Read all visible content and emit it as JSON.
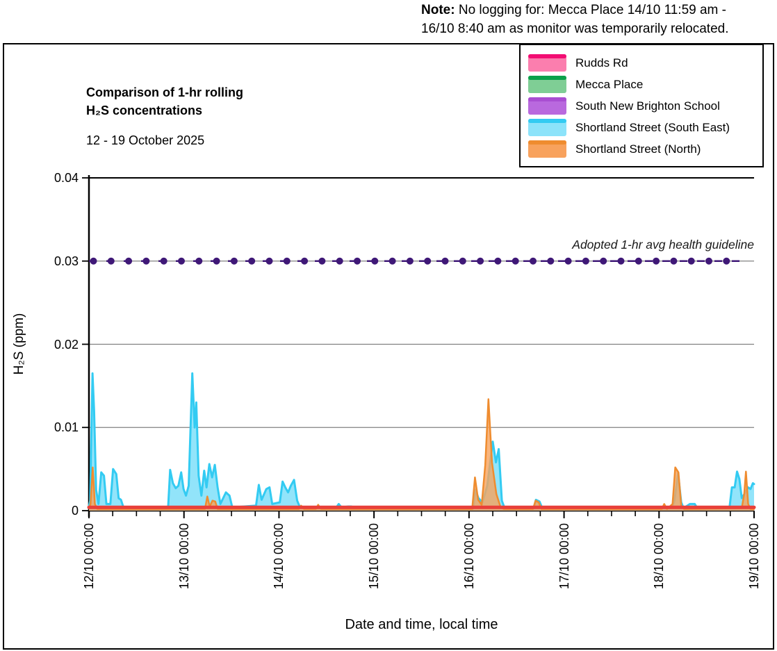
{
  "note": {
    "label": "Note:",
    "line1": " No logging for: Mecca Place 14/10 11:59 am -",
    "line2": "16/10 8:40 am as monitor was temporarily relocated."
  },
  "title": {
    "line1": "Comparison of 1-hr rolling",
    "line2": "H₂S concentrations",
    "date_range": "12 - 19 October 2025"
  },
  "legend": {
    "items": [
      {
        "label": "Rudds Rd",
        "line": "#F20D73",
        "fill": "#FB7EAE"
      },
      {
        "label": "Mecca Place",
        "line": "#0CA14B",
        "fill": "#7FCE95"
      },
      {
        "label": "South New Brighton School",
        "line": "#A94ED2",
        "fill": "#B969DE"
      },
      {
        "label": "Shortland Street (South East)",
        "line": "#33CBF2",
        "fill": "#8CE3FA"
      },
      {
        "label": "Shortland Street (North)",
        "line": "#EF8C2F",
        "fill": "#F8A25D"
      }
    ]
  },
  "axes": {
    "y_label": "H₂S (ppm)",
    "x_label": "Date and time, local time",
    "y_ticks": [
      "0.04",
      "0.03",
      "0.02",
      "0.01",
      "0"
    ],
    "x_ticks": [
      "12/10 00:00",
      "13/10 00:00",
      "14/10 00:00",
      "15/10 00:00",
      "16/10 00:00",
      "17/10 00:00",
      "18/10 00:00",
      "19/10 00:00"
    ]
  },
  "guideline": {
    "label": "Adopted 1-hr avg health guideline",
    "value": 0.03,
    "color": "#3F1877"
  },
  "chart_data": {
    "type": "area",
    "title": "Comparison of 1-hr rolling H₂S concentrations, 12 - 19 October 2025",
    "xlabel": "Date and time, local time",
    "ylabel": "H₂S (ppm)",
    "x_unit": "hours since 12/10 00:00",
    "x_range": [
      0,
      168
    ],
    "ylim": [
      0,
      0.04
    ],
    "grid_values": [
      0.01,
      0.02,
      0.03,
      0.04
    ],
    "guideline_value": 0.03,
    "series": [
      {
        "name": "South New Brighton School",
        "color": "#A94ED2",
        "fill": "none",
        "width": 2.5,
        "opacity": 1,
        "points": [
          [
            0,
            0.00035
          ],
          [
            168,
            0.00035
          ]
        ]
      },
      {
        "name": "Mecca Place",
        "color": "#0CA14B",
        "fill": "none",
        "width": 2.5,
        "opacity": 1,
        "points": [
          [
            0,
            0.0003
          ],
          [
            168,
            0.0003
          ]
        ]
      },
      {
        "name": "Shortland Street (South East)",
        "color": "#33CBF2",
        "fill": "#8CE3FA",
        "width": 3,
        "opacity": 0.95,
        "points": [
          [
            0,
            0.0005
          ],
          [
            0.3,
            0.0012
          ],
          [
            0.9,
            0.0165
          ],
          [
            1.3,
            0.012
          ],
          [
            1.8,
            0.0025
          ],
          [
            2.4,
            0.0008
          ],
          [
            3.1,
            0.0046
          ],
          [
            3.8,
            0.0042
          ],
          [
            4.4,
            0.0008
          ],
          [
            5.4,
            0.0008
          ],
          [
            6.1,
            0.005
          ],
          [
            6.9,
            0.0044
          ],
          [
            7.5,
            0.0015
          ],
          [
            8.1,
            0.0013
          ],
          [
            8.7,
            0.0004
          ],
          [
            20.0,
            0.0004
          ],
          [
            20.5,
            0.0049
          ],
          [
            21.2,
            0.0033
          ],
          [
            21.9,
            0.0027
          ],
          [
            22.6,
            0.003
          ],
          [
            23.3,
            0.0046
          ],
          [
            23.9,
            0.0026
          ],
          [
            24.5,
            0.0018
          ],
          [
            25.2,
            0.003
          ],
          [
            26.1,
            0.0165
          ],
          [
            26.7,
            0.01
          ],
          [
            27.1,
            0.013
          ],
          [
            27.7,
            0.0042
          ],
          [
            28.4,
            0.0018
          ],
          [
            29.1,
            0.0048
          ],
          [
            29.7,
            0.0028
          ],
          [
            30.4,
            0.0056
          ],
          [
            31.1,
            0.004
          ],
          [
            31.8,
            0.0055
          ],
          [
            32.5,
            0.0028
          ],
          [
            33.2,
            0.0008
          ],
          [
            34.6,
            0.0022
          ],
          [
            35.5,
            0.0018
          ],
          [
            36.2,
            0.0004
          ],
          [
            42.2,
            0.0006
          ],
          [
            42.9,
            0.0031
          ],
          [
            43.6,
            0.0013
          ],
          [
            44.8,
            0.0026
          ],
          [
            45.6,
            0.0028
          ],
          [
            46.3,
            0.0008
          ],
          [
            48.2,
            0.001
          ],
          [
            48.9,
            0.0035
          ],
          [
            49.6,
            0.0028
          ],
          [
            50.3,
            0.0022
          ],
          [
            51.0,
            0.003
          ],
          [
            51.8,
            0.0037
          ],
          [
            52.6,
            0.0012
          ],
          [
            53.3,
            0.0004
          ],
          [
            62.5,
            0.0004
          ],
          [
            63.1,
            0.0008
          ],
          [
            63.8,
            0.0004
          ],
          [
            65.5,
            0.0005
          ],
          [
            66.3,
            0.0005
          ],
          [
            66.9,
            0.0002
          ],
          [
            97.0,
            0.0002
          ],
          [
            97.6,
            0.0025
          ],
          [
            98.4,
            0.0015
          ],
          [
            99.4,
            0.001
          ],
          [
            100.6,
            0.003
          ],
          [
            102.0,
            0.0083
          ],
          [
            102.8,
            0.0058
          ],
          [
            103.5,
            0.0074
          ],
          [
            104.3,
            0.0012
          ],
          [
            105.0,
            0.0003
          ],
          [
            112.3,
            0.0003
          ],
          [
            112.9,
            0.0013
          ],
          [
            113.8,
            0.0011
          ],
          [
            114.5,
            0.0003
          ],
          [
            147.2,
            0.0003
          ],
          [
            147.9,
            0.0012
          ],
          [
            148.8,
            0.0045
          ],
          [
            149.6,
            0.001
          ],
          [
            150.2,
            0.0003
          ],
          [
            151.8,
            0.0008
          ],
          [
            153.0,
            0.0008
          ],
          [
            153.7,
            0.0003
          ],
          [
            161.8,
            0.0004
          ],
          [
            162.4,
            0.0028
          ],
          [
            163.1,
            0.0028
          ],
          [
            163.7,
            0.0047
          ],
          [
            164.3,
            0.0038
          ],
          [
            164.9,
            0.0015
          ],
          [
            165.8,
            0.0022
          ],
          [
            166.5,
            0.0028
          ],
          [
            167.1,
            0.0026
          ],
          [
            167.7,
            0.0033
          ],
          [
            168,
            0.0032
          ]
        ]
      },
      {
        "name": "Shortland Street (North)",
        "color": "#EF8C2F",
        "fill": "#F8A25D",
        "width": 2.5,
        "opacity": 0.8,
        "points": [
          [
            0,
            0.0003
          ],
          [
            0.4,
            0.0008
          ],
          [
            0.95,
            0.0052
          ],
          [
            1.5,
            0.0008
          ],
          [
            2.1,
            0.0002
          ],
          [
            29.3,
            0.0002
          ],
          [
            29.9,
            0.0017
          ],
          [
            30.5,
            0.0005
          ],
          [
            31.2,
            0.0012
          ],
          [
            31.9,
            0.0011
          ],
          [
            32.5,
            0.0002
          ],
          [
            53.0,
            0.0002
          ],
          [
            53.6,
            0.0006
          ],
          [
            54.3,
            0.0002
          ],
          [
            57.3,
            0.0002
          ],
          [
            57.9,
            0.0007
          ],
          [
            58.6,
            0.0002
          ],
          [
            96.8,
            0.0002
          ],
          [
            97.5,
            0.004
          ],
          [
            98.3,
            0.0013
          ],
          [
            99.2,
            0.0007
          ],
          [
            100.1,
            0.0055
          ],
          [
            100.9,
            0.0134
          ],
          [
            101.8,
            0.0058
          ],
          [
            102.9,
            0.002
          ],
          [
            104.0,
            0.0004
          ],
          [
            104.8,
            0.0002
          ],
          [
            112.2,
            0.0002
          ],
          [
            112.8,
            0.0012
          ],
          [
            113.6,
            0.001
          ],
          [
            114.3,
            0.0002
          ],
          [
            144.7,
            0.0002
          ],
          [
            145.3,
            0.0008
          ],
          [
            146.0,
            0.0002
          ],
          [
            147.4,
            0.0008
          ],
          [
            148.1,
            0.0052
          ],
          [
            148.9,
            0.0046
          ],
          [
            149.6,
            0.0006
          ],
          [
            150.3,
            0.0002
          ],
          [
            164.9,
            0.0003
          ],
          [
            165.5,
            0.002
          ],
          [
            165.95,
            0.0047
          ],
          [
            166.5,
            0.0008
          ],
          [
            167.1,
            0.0002
          ],
          [
            168,
            0.0002
          ]
        ]
      },
      {
        "name": "Rudds Rd",
        "color": "#E8403A",
        "fill": "none",
        "width": 5,
        "opacity": 1,
        "points": [
          [
            0,
            0.0004
          ],
          [
            168,
            0.0004
          ]
        ]
      }
    ]
  }
}
